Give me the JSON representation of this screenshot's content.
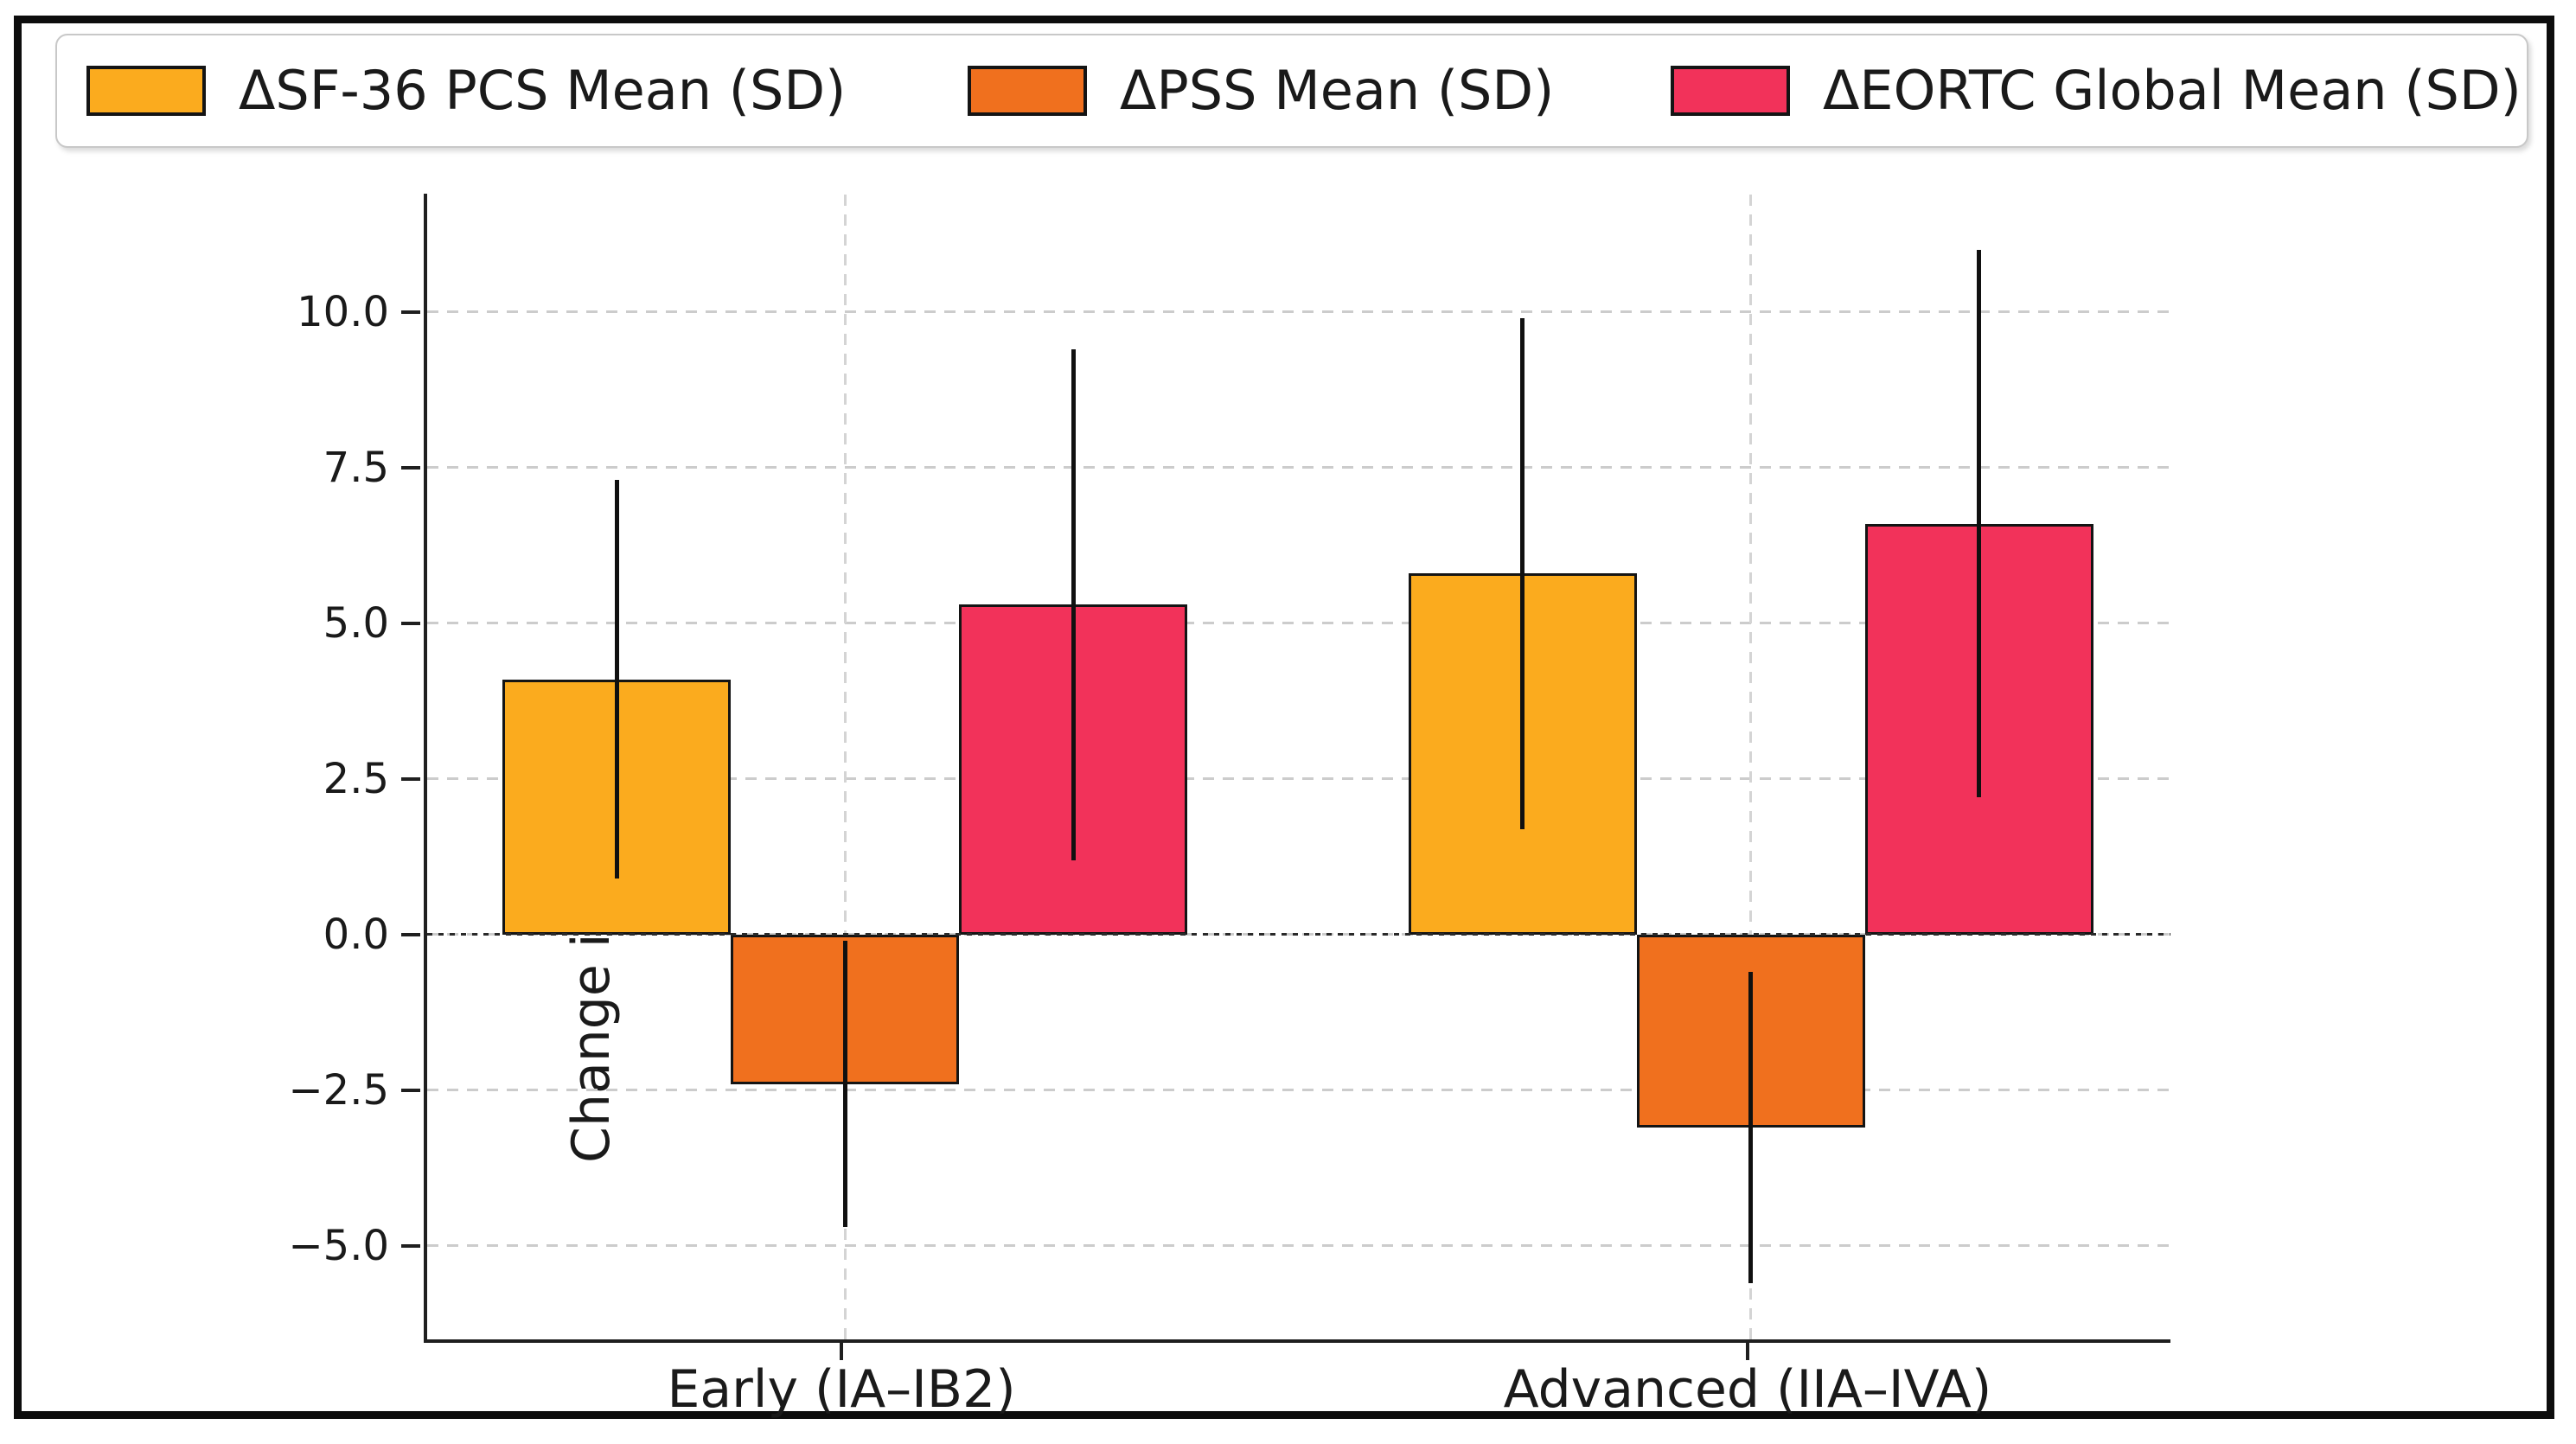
{
  "chart_data": {
    "type": "bar",
    "title": "",
    "ylabel": "Change in Scores",
    "categories": [
      "Early (IA–IB2)",
      "Advanced (IIA–IVA)"
    ],
    "series": [
      {
        "name": "ΔSF-36 PCS Mean (SD)",
        "color": "#FBAB1E",
        "values": [
          4.1,
          5.8
        ],
        "sd": [
          3.2,
          4.1
        ]
      },
      {
        "name": "ΔPSS Mean (SD)",
        "color": "#F0701E",
        "values": [
          -2.4,
          -3.1
        ],
        "sd": [
          2.3,
          2.5
        ]
      },
      {
        "name": "ΔEORTC Global Mean (SD)",
        "color": "#F2325A",
        "values": [
          5.3,
          6.6
        ],
        "sd": [
          4.1,
          4.4
        ]
      }
    ],
    "error_bars": "symmetric standard deviation, no caps",
    "yticks": [
      10.0,
      7.5,
      5.0,
      2.5,
      0.0,
      -2.5,
      -5.0
    ],
    "ylim": [
      -6.5,
      11.9
    ],
    "grid": "dashed light gray, horizontal and vertical",
    "zero_line": "dark dotted horizontal line at y=0",
    "legend_position": "top row, horizontal",
    "colors": {
      "sf36": "#FBAB1E",
      "pss": "#F0701E",
      "eortc": "#F2325A",
      "axis": "#1f1f1f",
      "grid": "#cccccc",
      "figure_border": "#0d0d0d"
    }
  }
}
